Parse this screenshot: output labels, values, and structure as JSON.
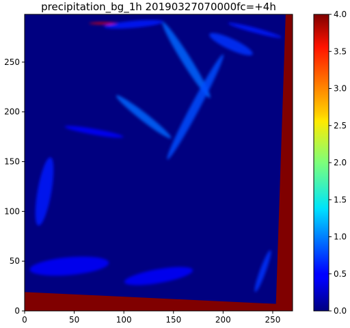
{
  "chart_data": {
    "type": "heatmap",
    "title": "precipitation_bg_1h 20190327070000fc=+4h",
    "xlabel": "",
    "ylabel": "",
    "xlim": [
      0,
      270
    ],
    "ylim": [
      0,
      298
    ],
    "x_ticks": [
      0,
      50,
      100,
      150,
      200,
      250
    ],
    "x_tick_labels": [
      "0",
      "50",
      "100",
      "150",
      "200",
      "250"
    ],
    "y_ticks": [
      0,
      50,
      100,
      150,
      200,
      250
    ],
    "y_tick_labels": [
      "0",
      "50",
      "100",
      "150",
      "200",
      "250"
    ],
    "colormap": "jet",
    "colorbar": {
      "vmin": 0.0,
      "vmax": 4.0,
      "ticks": [
        0.0,
        0.5,
        1.0,
        1.5,
        2.0,
        2.5,
        3.0,
        3.5,
        4.0
      ],
      "tick_labels": [
        "0.0",
        "0.5",
        "1.0",
        "1.5",
        "2.0",
        "2.5",
        "3.0",
        "3.5",
        "4.0"
      ]
    },
    "background_value": 0.0,
    "no_data_regions": [
      {
        "name": "bottom-edge",
        "value": 4.0,
        "polygon": [
          [
            0,
            0
          ],
          [
            255,
            0
          ],
          [
            255,
            7
          ],
          [
            0,
            19
          ]
        ]
      },
      {
        "name": "right-edge",
        "value": 4.0,
        "polygon": [
          [
            270,
            0
          ],
          [
            270,
            298
          ],
          [
            263,
            298
          ],
          [
            253,
            0
          ]
        ]
      }
    ],
    "features": [
      {
        "name": "top-streak",
        "value": 3.5,
        "center": [
          80,
          289
        ],
        "length": 30,
        "width": 2,
        "angle": 0
      },
      {
        "name": "top-band",
        "value": 0.6,
        "center": [
          110,
          288
        ],
        "length": 60,
        "width": 7,
        "angle": 5
      },
      {
        "name": "north-band",
        "value": 0.9,
        "center": [
          163,
          252
        ],
        "length": 90,
        "width": 9,
        "angle": -58
      },
      {
        "name": "central-band",
        "value": 0.8,
        "center": [
          172,
          205
        ],
        "length": 120,
        "width": 9,
        "angle": 62
      },
      {
        "name": "curved-band",
        "value": 0.7,
        "center": [
          208,
          268
        ],
        "length": 48,
        "width": 11,
        "angle": -25
      },
      {
        "name": "top-right-band",
        "value": 0.6,
        "center": [
          232,
          282
        ],
        "length": 56,
        "width": 5,
        "angle": -15
      },
      {
        "name": "mid-left-band",
        "value": 0.9,
        "center": [
          120,
          195
        ],
        "length": 70,
        "width": 8,
        "angle": -38
      },
      {
        "name": "left-streak",
        "value": 0.5,
        "center": [
          70,
          180
        ],
        "length": 60,
        "width": 6,
        "angle": -10
      },
      {
        "name": "left-cluster",
        "value": 0.6,
        "center": [
          20,
          120
        ],
        "length": 70,
        "width": 14,
        "angle": 80
      },
      {
        "name": "bottom-left-cluster",
        "value": 0.5,
        "center": [
          45,
          45
        ],
        "length": 80,
        "width": 18,
        "angle": 5
      },
      {
        "name": "bottom-mid-cluster",
        "value": 0.5,
        "center": [
          135,
          35
        ],
        "length": 70,
        "width": 14,
        "angle": 10
      },
      {
        "name": "bottom-right-band",
        "value": 0.7,
        "center": [
          240,
          40
        ],
        "length": 45,
        "width": 6,
        "angle": 70
      }
    ]
  }
}
